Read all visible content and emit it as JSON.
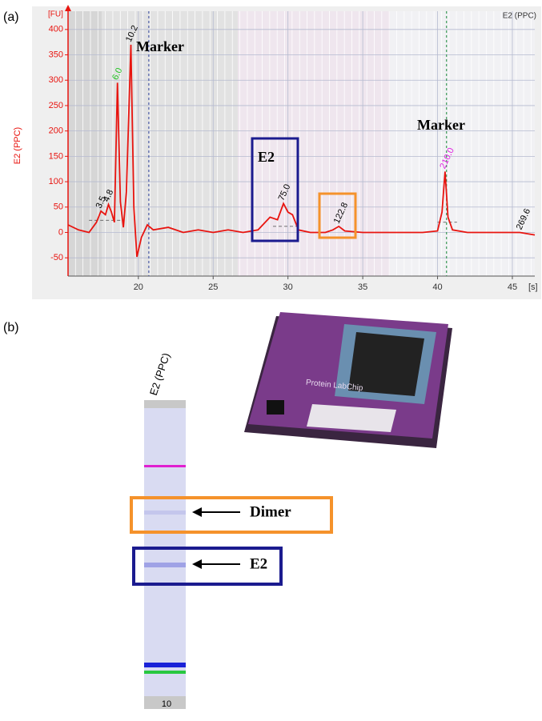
{
  "panel_labels": [
    "(a)",
    "(b)"
  ],
  "chart_data": {
    "type": "line",
    "y_label": "E2 (PPC)",
    "y_unit": "[FU]",
    "x_unit": "[s]",
    "sample": "E2 (PPC)",
    "color": "#e8140f",
    "xlim": [
      15.3,
      46.5
    ],
    "ylim": [
      -86,
      436
    ],
    "xticks": [
      20,
      25,
      30,
      35,
      40,
      45
    ],
    "yticks": [
      -50,
      0,
      50,
      100,
      150,
      200,
      250,
      300,
      350,
      400
    ],
    "grid": true,
    "x": [
      15.3,
      16,
      16.7,
      17.2,
      17.5,
      17.8,
      18.0,
      18.2,
      18.4,
      18.6,
      18.8,
      19.0,
      19.2,
      19.5,
      19.7,
      19.9,
      20.2,
      20.6,
      21,
      22,
      23,
      24,
      25,
      26,
      27,
      28,
      28.8,
      29.3,
      29.7,
      30.0,
      30.3,
      30.7,
      31.5,
      32.5,
      33.0,
      33.4,
      33.8,
      35,
      37,
      39,
      40.0,
      40.3,
      40.5,
      40.7,
      41,
      42,
      44,
      45.5,
      46.5
    ],
    "values": [
      15,
      5,
      0,
      20,
      42,
      35,
      55,
      40,
      20,
      295,
      60,
      10,
      80,
      370,
      50,
      -48,
      -10,
      15,
      5,
      10,
      0,
      5,
      0,
      5,
      0,
      5,
      30,
      25,
      57,
      40,
      35,
      5,
      0,
      0,
      5,
      12,
      3,
      0,
      0,
      0,
      3,
      40,
      120,
      30,
      5,
      0,
      0,
      0,
      -5
    ],
    "peaks": [
      {
        "label": "3.5",
        "x": 17.5,
        "y": 42,
        "color": "#000000"
      },
      {
        "label": "4.8",
        "x": 18.0,
        "y": 55,
        "color": "#000000"
      },
      {
        "label": "6.0",
        "x": 18.6,
        "y": 295,
        "color": "#1fc41f"
      },
      {
        "label": "10.2",
        "x": 19.5,
        "y": 370,
        "color": "#000000"
      },
      {
        "label": "75.0",
        "x": 29.7,
        "y": 57,
        "color": "#000000"
      },
      {
        "label": "122.8",
        "x": 33.4,
        "y": 12,
        "color": "#000000"
      },
      {
        "label": "210.0",
        "x": 40.5,
        "y": 120,
        "color": "#e020e0"
      },
      {
        "label": "269.6",
        "x": 45.6,
        "y": 0,
        "color": "#000000"
      }
    ],
    "marker_lines": [
      {
        "x": 20.7,
        "color": "#2a3f9a"
      },
      {
        "x": 40.6,
        "color": "#1a8a3a"
      }
    ],
    "annotations": [
      "Marker",
      "E2",
      "Marker"
    ]
  },
  "gel": {
    "lane_label": "E2 (PPC)",
    "lane_number": "10",
    "dimer": "Dimer",
    "e2": "E2"
  },
  "photo_text": "Protein LabChip"
}
